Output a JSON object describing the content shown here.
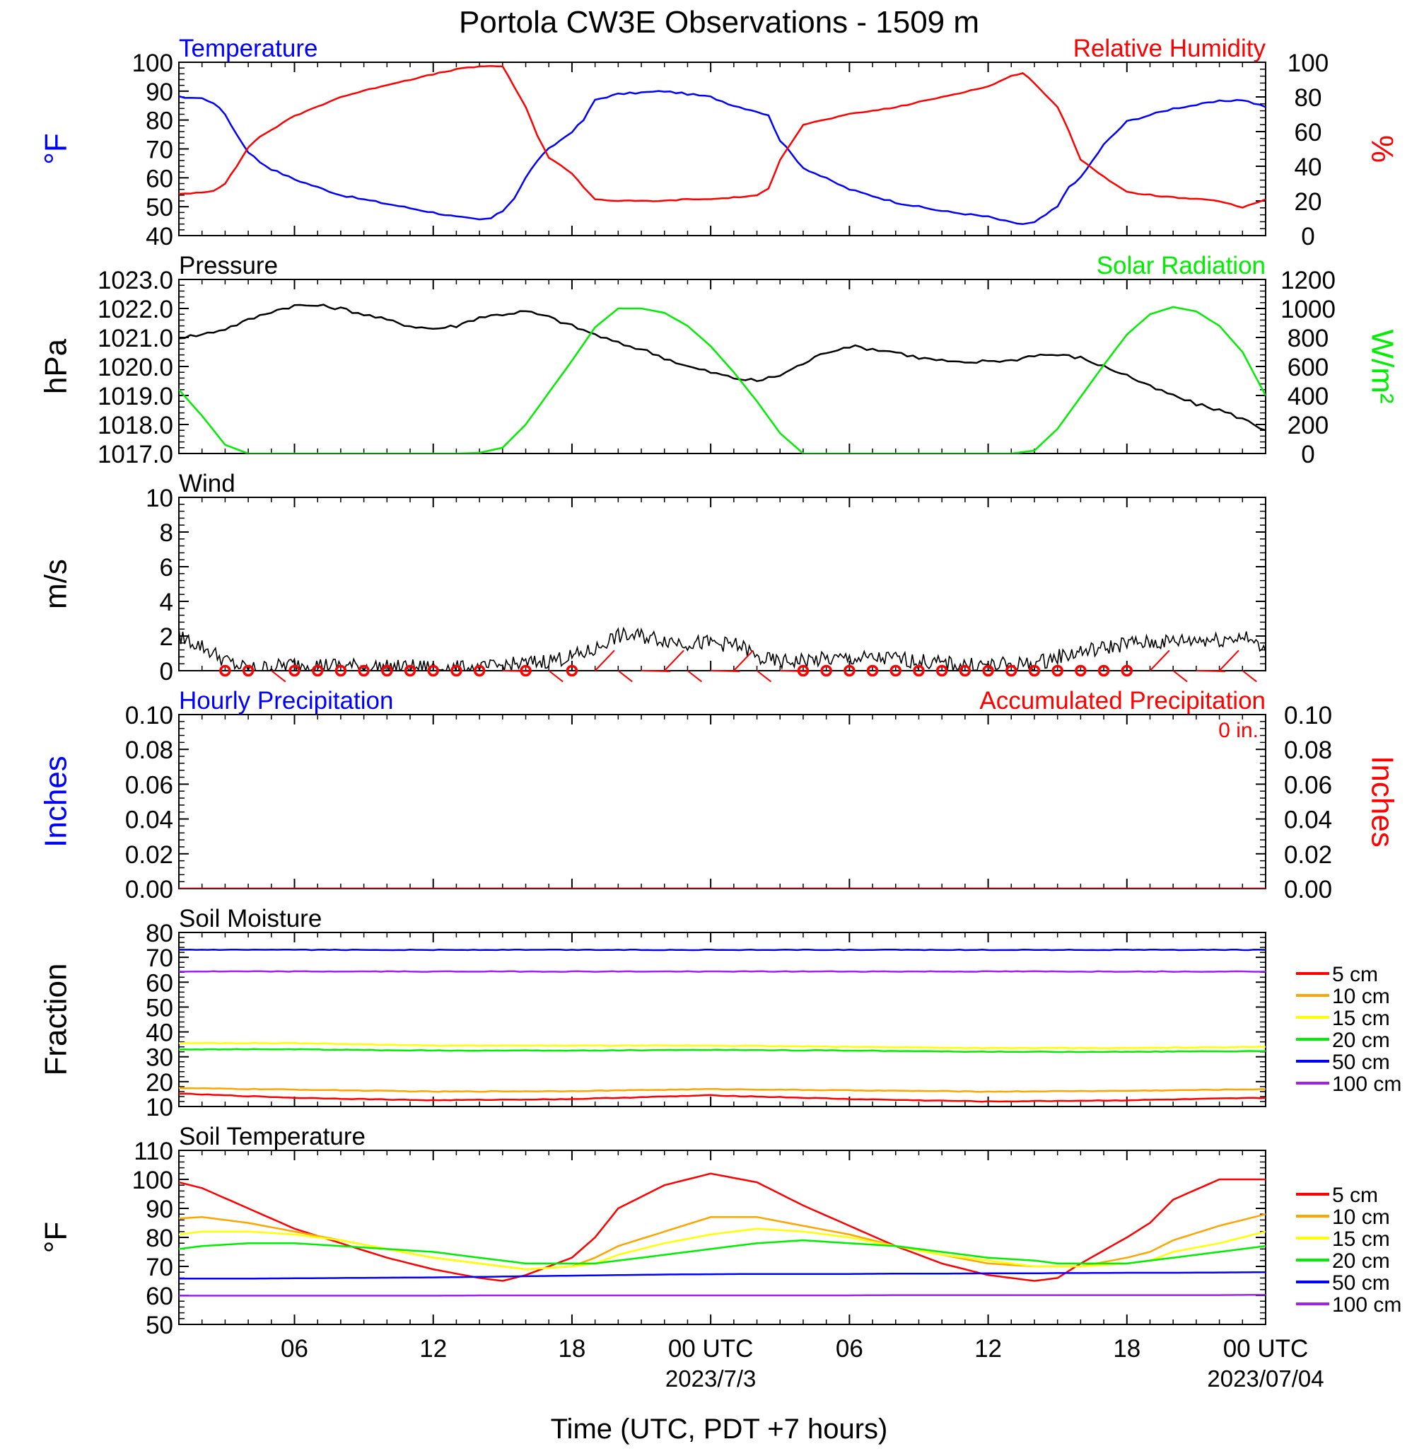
{
  "title": "Portola CW3E Observations - 1509 m",
  "x_axis": {
    "label": "Time (UTC, PDT +7 hours)",
    "tick_labels": [
      "06",
      "12",
      "18",
      "00 UTC",
      "06",
      "12",
      "18",
      "00 UTC"
    ],
    "date_labels": [
      "2023/7/3",
      "2023/07/04"
    ]
  },
  "colors": {
    "temperature": "#0000ff",
    "humidity": "#ff0000",
    "pressure": "#000000",
    "solar": "#00ee00",
    "wind": "#000000",
    "wind_barb": "#ff0000",
    "hourly_precip": "#0000ff",
    "accum_precip": "#ff0000",
    "depth_5cm": "#ff0000",
    "depth_10cm": "#ffa500",
    "depth_15cm": "#ffff00",
    "depth_20cm": "#00ee00",
    "depth_50cm": "#0000ff",
    "depth_100cm": "#a020f0"
  },
  "chart_data": [
    {
      "id": "temp_rh",
      "type": "line",
      "title_left": "Temperature",
      "title_right": "Relative Humidity",
      "ylabel_left": "°F",
      "ylabel_right": "%",
      "ylim_left": [
        40,
        100
      ],
      "ylim_right": [
        0,
        100
      ],
      "yticks_left": [
        "40",
        "50",
        "60",
        "70",
        "80",
        "90",
        "100"
      ],
      "yticks_right": [
        "0",
        "20",
        "40",
        "60",
        "80",
        "100"
      ],
      "x_hours": [
        0,
        2,
        2.5,
        3,
        3.5,
        4,
        4.5,
        5,
        6,
        8,
        10,
        12,
        13,
        14,
        14.5,
        15,
        15.5,
        16,
        16.5,
        17,
        18,
        18.5,
        19,
        20,
        22,
        23,
        24,
        25,
        26,
        26.5,
        27,
        28,
        30,
        32,
        34,
        36,
        37,
        37.5,
        38,
        39,
        39.5,
        40,
        41,
        42,
        44,
        46,
        47,
        48
      ],
      "series": [
        {
          "name": "Temperature",
          "axis": "left",
          "values": [
            88.5,
            87.5,
            86.0,
            82.0,
            75.0,
            69.0,
            65.5,
            63.0,
            59.5,
            54.0,
            51.0,
            48.0,
            46.5,
            45.5,
            46.0,
            48.5,
            53.0,
            60.0,
            66.0,
            70.0,
            76.0,
            80.0,
            87.0,
            89.0,
            90.0,
            89.0,
            88.0,
            85.0,
            83.0,
            81.5,
            73.0,
            63.5,
            56.0,
            51.5,
            48.5,
            46.5,
            44.5,
            44.0,
            44.5,
            50.0,
            57.0,
            60.0,
            71.5,
            79.5,
            84.0,
            86.5,
            87.0,
            84.5
          ]
        },
        {
          "name": "Relative Humidity",
          "axis": "right",
          "values": [
            23.0,
            25.0,
            26.0,
            30.0,
            40.0,
            51.0,
            57.0,
            61.0,
            69.0,
            80.0,
            87.0,
            93.0,
            96.0,
            97.5,
            98.0,
            97.5,
            86.0,
            74.0,
            58.0,
            45.0,
            36.0,
            28.0,
            21.0,
            20.0,
            20.0,
            21.0,
            21.0,
            22.0,
            23.0,
            27.0,
            44.0,
            64.0,
            70.0,
            74.0,
            80.0,
            86.0,
            92.0,
            94.0,
            88.0,
            74.0,
            60.0,
            44.0,
            34.0,
            25.0,
            22.0,
            20.0,
            16.0,
            21.0
          ]
        }
      ]
    },
    {
      "id": "pressure_solar",
      "type": "line",
      "title_left": "Pressure",
      "title_right": "Solar Radiation",
      "ylabel_left": "hPa",
      "ylabel_right": "W/m²",
      "ylim_left": [
        1017.0,
        1023.0
      ],
      "ylim_right": [
        0,
        1200
      ],
      "yticks_left": [
        "1017.0",
        "1018.0",
        "1019.0",
        "1020.0",
        "1021.0",
        "1022.0",
        "1023.0"
      ],
      "yticks_right": [
        "0",
        "200",
        "400",
        "600",
        "800",
        "1000",
        "1200"
      ],
      "x_hours": [
        0,
        1,
        2,
        3,
        4,
        5,
        6,
        7,
        8,
        9,
        10,
        11,
        12,
        13,
        14,
        15,
        16,
        17,
        18,
        19,
        20,
        21,
        22,
        23,
        24,
        25,
        26,
        27,
        28,
        29,
        30,
        31,
        32,
        33,
        34,
        35,
        36,
        37,
        38,
        39,
        40,
        41,
        42,
        43,
        44,
        45,
        46,
        47,
        48
      ],
      "series": [
        {
          "name": "Pressure",
          "axis": "left",
          "values": [
            1021.2,
            1021.0,
            1021.1,
            1021.3,
            1021.6,
            1021.9,
            1022.1,
            1022.1,
            1022.0,
            1021.8,
            1021.6,
            1021.4,
            1021.3,
            1021.4,
            1021.7,
            1021.8,
            1021.9,
            1021.7,
            1021.4,
            1021.1,
            1020.8,
            1020.6,
            1020.3,
            1020.0,
            1019.8,
            1019.6,
            1019.5,
            1019.7,
            1020.1,
            1020.5,
            1020.7,
            1020.6,
            1020.5,
            1020.3,
            1020.2,
            1020.1,
            1020.2,
            1020.2,
            1020.4,
            1020.4,
            1020.3,
            1020.0,
            1019.7,
            1019.3,
            1019.0,
            1018.7,
            1018.5,
            1018.2,
            1017.8
          ]
        },
        {
          "name": "Solar Radiation",
          "axis": "right",
          "values": [
            610,
            440,
            260,
            60,
            0,
            0,
            0,
            0,
            0,
            0,
            0,
            0,
            0,
            0,
            5,
            40,
            200,
            420,
            640,
            870,
            1000,
            1000,
            970,
            880,
            740,
            560,
            360,
            140,
            0,
            0,
            0,
            0,
            0,
            0,
            0,
            0,
            0,
            0,
            20,
            170,
            390,
            610,
            820,
            960,
            1010,
            980,
            880,
            700,
            400
          ]
        }
      ]
    },
    {
      "id": "wind",
      "type": "line",
      "title_left": "Wind",
      "ylabel_left": "m/s",
      "ylim_left": [
        0,
        10
      ],
      "yticks_left": [
        "0",
        "2",
        "4",
        "6",
        "8",
        "10"
      ],
      "x_hours": [
        0,
        0.5,
        1,
        1.5,
        2,
        2.5,
        3,
        3.5,
        4,
        5,
        6,
        8,
        10,
        12,
        14,
        15,
        16,
        17,
        18,
        19,
        19.5,
        20,
        21,
        22,
        23,
        24,
        25,
        25.5,
        26,
        27,
        28,
        30,
        32,
        34,
        36,
        38,
        39,
        40,
        41,
        42,
        43,
        44,
        45,
        46,
        47,
        47.5,
        48
      ],
      "series": [
        {
          "name": "Wind speed",
          "axis": "left",
          "values": [
            2.5,
            2.3,
            2.0,
            1.7,
            1.4,
            1.0,
            0.6,
            0.3,
            0.1,
            0.2,
            0.4,
            0.3,
            0.2,
            0.2,
            0.1,
            0.3,
            0.4,
            0.6,
            0.8,
            1.2,
            1.7,
            2.0,
            2.0,
            1.8,
            1.6,
            1.6,
            1.5,
            1.3,
            0.7,
            0.5,
            0.6,
            0.7,
            0.7,
            0.4,
            0.3,
            0.4,
            0.8,
            1.1,
            1.3,
            1.6,
            1.6,
            1.7,
            1.8,
            1.8,
            2.0,
            1.6,
            1.1
          ]
        }
      ],
      "barbs": {
        "x_hours": [
          3,
          4,
          5,
          6,
          7,
          8,
          9,
          10,
          11,
          12,
          13,
          14,
          15,
          16,
          17,
          18,
          19,
          20,
          21,
          22,
          23,
          24,
          25,
          26,
          27,
          28,
          29,
          30,
          31,
          32,
          33,
          34,
          35,
          36,
          37,
          38,
          39,
          40,
          41,
          42,
          43,
          44,
          45,
          46,
          47
        ],
        "calm": [
          true,
          true,
          false,
          true,
          true,
          true,
          true,
          true,
          true,
          true,
          true,
          true,
          false,
          true,
          false,
          true,
          false,
          false,
          false,
          false,
          false,
          false,
          false,
          false,
          false,
          true,
          true,
          true,
          true,
          true,
          true,
          true,
          true,
          true,
          true,
          true,
          true,
          true,
          true,
          true,
          false,
          false,
          false,
          false,
          false
        ]
      }
    },
    {
      "id": "precip",
      "type": "line",
      "title_left": "Hourly Precipitation",
      "title_right": "Accumulated Precipitation",
      "total_label": "0 in.",
      "ylabel_left": "Inches",
      "ylabel_right": "Inches",
      "ylim_left": [
        0,
        0.1
      ],
      "ylim_right": [
        0,
        0.1
      ],
      "yticks_left": [
        "0.00",
        "0.02",
        "0.04",
        "0.06",
        "0.08",
        "0.10"
      ],
      "yticks_right": [
        "0.00",
        "0.02",
        "0.04",
        "0.06",
        "0.08",
        "0.10"
      ],
      "x_hours": [
        0,
        48
      ],
      "series": [
        {
          "name": "Hourly Precipitation",
          "axis": "left",
          "values": [
            0,
            0
          ]
        },
        {
          "name": "Accumulated Precipitation",
          "axis": "right",
          "values": [
            0,
            0
          ]
        }
      ]
    },
    {
      "id": "soil_moisture",
      "type": "line",
      "title_left": "Soil Moisture",
      "ylabel_left": "Fraction",
      "ylim_left": [
        10,
        80
      ],
      "yticks_left": [
        "10",
        "20",
        "30",
        "40",
        "50",
        "60",
        "70",
        "80"
      ],
      "legend": [
        "5 cm",
        "10 cm",
        "15 cm",
        "20 cm",
        "50 cm",
        "100 cm"
      ],
      "x_hours": [
        0,
        6,
        12,
        18,
        24,
        30,
        36,
        42,
        48
      ],
      "series": [
        {
          "name": "5 cm",
          "axis": "left",
          "values": [
            15.5,
            13.5,
            12.5,
            13.0,
            14.5,
            13.0,
            12.0,
            12.5,
            13.5
          ]
        },
        {
          "name": "10 cm",
          "axis": "left",
          "values": [
            17.5,
            16.8,
            16.0,
            16.2,
            17.0,
            16.5,
            16.0,
            16.3,
            17.0
          ]
        },
        {
          "name": "15 cm",
          "axis": "left",
          "values": [
            35.5,
            35.5,
            34.5,
            34.5,
            34.5,
            34.0,
            33.5,
            33.5,
            34.0
          ]
        },
        {
          "name": "20 cm",
          "axis": "left",
          "values": [
            33.0,
            33.0,
            32.5,
            32.5,
            32.8,
            32.5,
            32.0,
            32.0,
            32.3
          ]
        },
        {
          "name": "50 cm",
          "axis": "left",
          "values": [
            73.0,
            73.0,
            73.0,
            73.0,
            73.0,
            73.0,
            73.0,
            73.0,
            73.0
          ]
        },
        {
          "name": "100 cm",
          "axis": "left",
          "values": [
            64.3,
            64.3,
            64.3,
            64.3,
            64.3,
            64.3,
            64.3,
            64.3,
            64.3
          ]
        }
      ]
    },
    {
      "id": "soil_temperature",
      "type": "line",
      "title_left": "Soil Temperature",
      "ylabel_left": "°F",
      "ylim_left": [
        50,
        110
      ],
      "yticks_left": [
        "50",
        "60",
        "70",
        "80",
        "90",
        "100",
        "110"
      ],
      "legend": [
        "5 cm",
        "10 cm",
        "15 cm",
        "20 cm",
        "50 cm",
        "100 cm"
      ],
      "x_hours": [
        0,
        2,
        4,
        6,
        8,
        10,
        12,
        14,
        15,
        16,
        18,
        19,
        20,
        22,
        24,
        26,
        28,
        30,
        32,
        34,
        36,
        38,
        39,
        40,
        42,
        43,
        44,
        46,
        48
      ],
      "series": [
        {
          "name": "5 cm",
          "axis": "left",
          "values": [
            101,
            97,
            90,
            83,
            78,
            73,
            69,
            66,
            65,
            67,
            73,
            80,
            90,
            98,
            102,
            99,
            91,
            84,
            77,
            71,
            67,
            65,
            66,
            71,
            80,
            85,
            93,
            100,
            100
          ]
        },
        {
          "name": "10 cm",
          "axis": "left",
          "values": [
            86,
            87,
            85,
            82,
            79,
            76,
            73,
            71,
            70,
            69,
            70,
            73,
            77,
            82,
            87,
            87,
            84,
            81,
            77,
            74,
            71,
            70,
            70,
            70,
            73,
            75,
            79,
            84,
            88
          ]
        },
        {
          "name": "15 cm",
          "axis": "left",
          "values": [
            80,
            82,
            82,
            81,
            79,
            76,
            73,
            71,
            70,
            69,
            70,
            71,
            74,
            78,
            81,
            83,
            82,
            80,
            77,
            74,
            72,
            70,
            70,
            70,
            71,
            72,
            75,
            78,
            82
          ]
        },
        {
          "name": "20 cm",
          "axis": "left",
          "values": [
            75,
            77,
            78,
            78,
            77,
            76,
            75,
            73,
            72,
            71,
            71,
            71,
            72,
            74,
            76,
            78,
            79,
            78,
            77,
            75,
            73,
            72,
            71,
            71,
            71,
            72,
            73,
            75,
            77
          ]
        },
        {
          "name": "50 cm",
          "axis": "left",
          "values": [
            65.8,
            65.8,
            65.8,
            65.9,
            66.0,
            66.1,
            66.2,
            66.4,
            66.5,
            66.6,
            66.8,
            66.9,
            67.0,
            67.2,
            67.3,
            67.4,
            67.4,
            67.4,
            67.5,
            67.5,
            67.6,
            67.6,
            67.7,
            67.7,
            67.8,
            67.8,
            67.8,
            67.9,
            68.0
          ]
        },
        {
          "name": "100 cm",
          "axis": "left",
          "values": [
            59.9,
            59.9,
            59.9,
            59.9,
            59.9,
            59.9,
            59.9,
            60.0,
            60.0,
            60.0,
            60.0,
            60.0,
            60.0,
            60.0,
            60.0,
            60.0,
            60.0,
            60.0,
            60.1,
            60.1,
            60.1,
            60.1,
            60.1,
            60.1,
            60.1,
            60.1,
            60.1,
            60.1,
            60.2
          ]
        }
      ]
    }
  ]
}
